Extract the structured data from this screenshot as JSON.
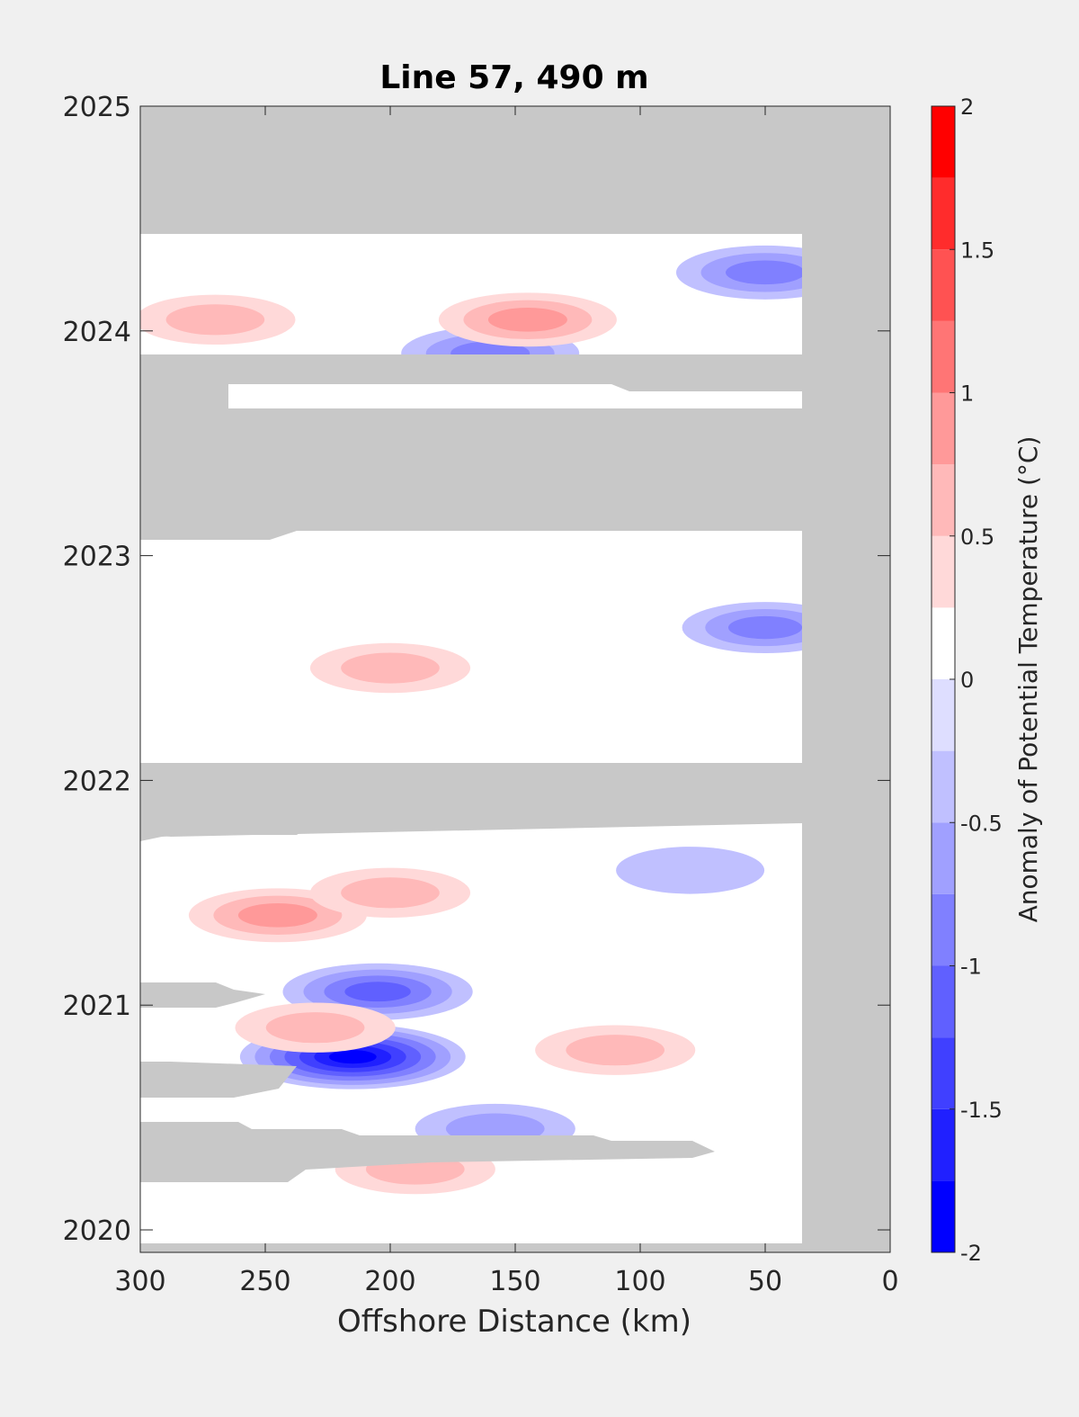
{
  "chart_data": {
    "type": "heatmap",
    "title": "Line 57, 490 m",
    "xlabel": "Offshore Distance (km)",
    "ylabel": "",
    "xlim": [
      300,
      0
    ],
    "x_reversed": true,
    "ylim": [
      2019.9,
      2025
    ],
    "x_ticks": [
      300,
      250,
      200,
      150,
      100,
      50,
      0
    ],
    "y_ticks": [
      2020,
      2021,
      2022,
      2023,
      2024,
      2025
    ],
    "colorbar": {
      "label": "Anomaly of Potential Temperature (°C)",
      "range": [
        -2,
        2
      ],
      "levels": [
        -2,
        -1.75,
        -1.5,
        -1.25,
        -1,
        -0.75,
        -0.5,
        -0.25,
        0,
        0.25,
        0.5,
        0.75,
        1,
        1.25,
        1.5,
        1.75,
        2
      ],
      "tick_values": [
        -2,
        -1.5,
        -1,
        -0.5,
        0,
        0.5,
        1,
        1.5,
        2
      ],
      "tick_labels": [
        "-2",
        "-1.5",
        "-1",
        "-0.5",
        "0",
        "0.5",
        "1",
        "1.5",
        "2"
      ],
      "colors": [
        "#0000ff",
        "#2020ff",
        "#4040ff",
        "#6060ff",
        "#8080ff",
        "#a0a0ff",
        "#c0c0ff",
        "#dedeff",
        "#ffffff",
        "#ffffff",
        "#ffd9d9",
        "#ffb9b9",
        "#ff9999",
        "#ff7575",
        "#ff5252",
        "#ff2c2c",
        "#ff0000"
      ]
    },
    "no_data_color": "#c8c8c8",
    "grid": false,
    "anomalies": [
      {
        "x": 215,
        "y": 2020.77,
        "value": -1.8
      },
      {
        "x": 205,
        "y": 2021.06,
        "value": -1.2
      },
      {
        "x": 158,
        "y": 2020.45,
        "value": -0.7
      },
      {
        "x": 160,
        "y": 2023.9,
        "value": -1.0
      },
      {
        "x": 50,
        "y": 2024.26,
        "value": -1.0
      },
      {
        "x": 50,
        "y": 2022.68,
        "value": -0.8
      },
      {
        "x": 80,
        "y": 2021.6,
        "value": -0.5
      },
      {
        "x": 245,
        "y": 2021.4,
        "value": 1.0
      },
      {
        "x": 200,
        "y": 2021.5,
        "value": 0.7
      },
      {
        "x": 145,
        "y": 2024.05,
        "value": 1.0
      },
      {
        "x": 200,
        "y": 2022.5,
        "value": 0.7
      },
      {
        "x": 230,
        "y": 2020.9,
        "value": 0.7
      },
      {
        "x": 110,
        "y": 2020.8,
        "value": 0.7
      },
      {
        "x": 190,
        "y": 2020.27,
        "value": 0.7
      },
      {
        "x": 270,
        "y": 2024.05,
        "value": 0.7
      }
    ]
  }
}
